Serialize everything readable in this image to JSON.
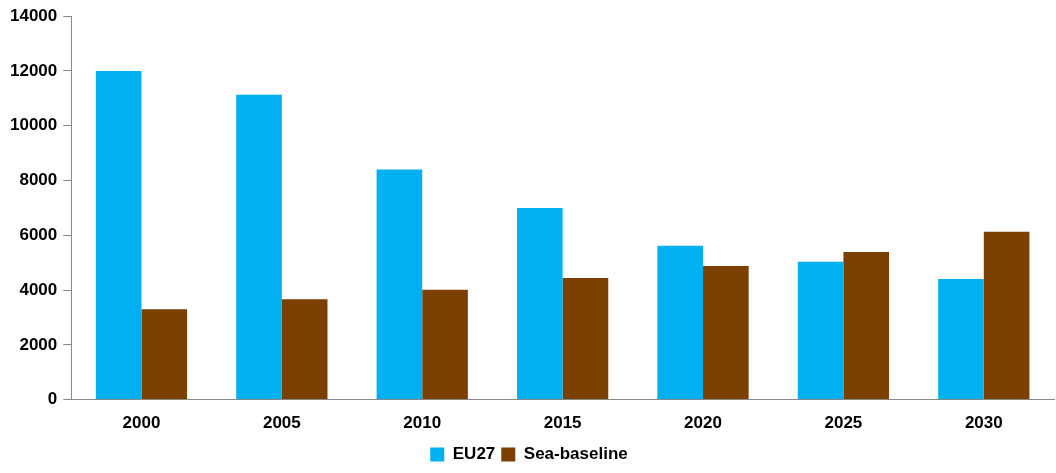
{
  "chart_data": {
    "type": "bar",
    "categories": [
      "2000",
      "2005",
      "2010",
      "2015",
      "2020",
      "2025",
      "2030"
    ],
    "series": [
      {
        "name": "EU27",
        "color": "#00b0f0",
        "values": [
          12000,
          11130,
          8400,
          7000,
          5620,
          5030,
          4400
        ]
      },
      {
        "name": "Sea-baseline",
        "color": "#7b3f00",
        "values": [
          3300,
          3660,
          4010,
          4440,
          4880,
          5390,
          6130
        ]
      }
    ],
    "ylim": [
      0,
      14000
    ],
    "yticks": [
      0,
      2000,
      4000,
      6000,
      8000,
      10000,
      12000,
      14000
    ],
    "grid": false,
    "legend": "bottom"
  }
}
